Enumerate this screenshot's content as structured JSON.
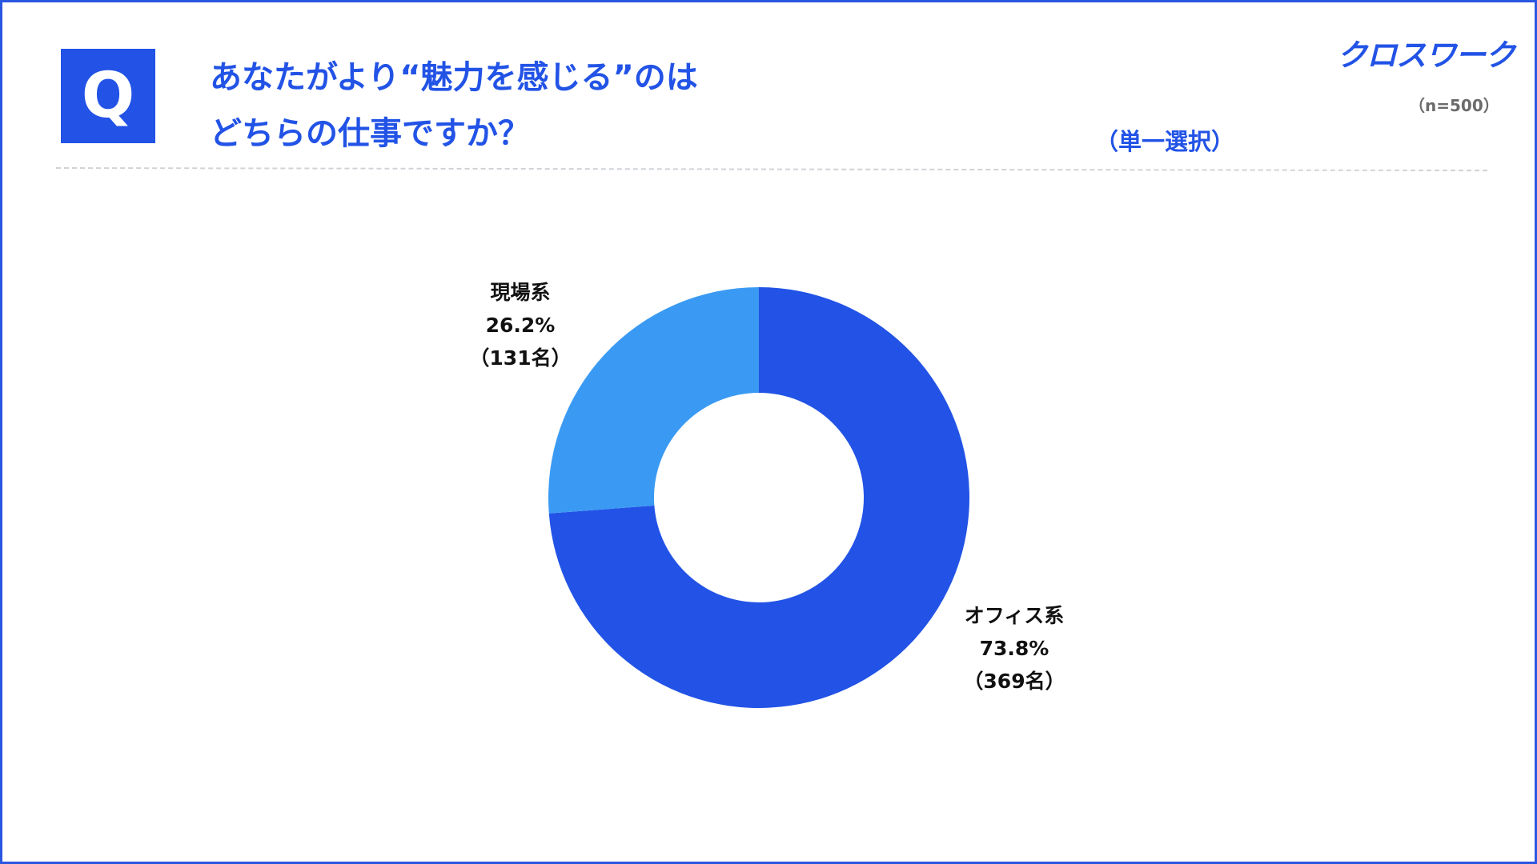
{
  "header": {
    "badge": "Q",
    "question_line1": "あなたがより“魅力を感じる”のは",
    "question_line2": "どちらの仕事ですか？",
    "selection_type": "（単一選択）",
    "sample_size": "（n=500）",
    "logo": "クロスワーク"
  },
  "colors": {
    "accent": "#2253e6",
    "office": "#2253e6",
    "genba": "#3a9af3",
    "frame": "#2a56e0"
  },
  "chart_data": {
    "type": "pie",
    "donut": true,
    "title": "あなたがより“魅力を感じる”のはどちらの仕事ですか？",
    "total_n": 500,
    "slices": [
      {
        "name": "オフィス系",
        "percent": 73.8,
        "percent_label": "73.8%",
        "count_label": "（369名）",
        "count": 369,
        "color": "#2253e6"
      },
      {
        "name": "現場系",
        "percent": 26.2,
        "percent_label": "26.2%",
        "count_label": "（131名）",
        "count": 131,
        "color": "#3a9af3"
      }
    ]
  }
}
